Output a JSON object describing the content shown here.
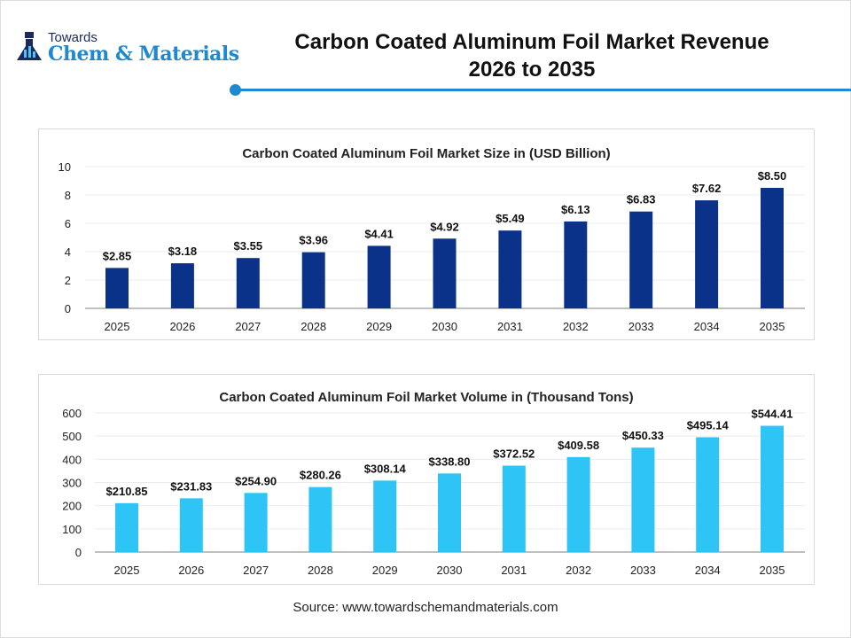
{
  "logo": {
    "line1": "Towards",
    "line2": "Chem & Materials"
  },
  "header": {
    "title_line1": "Carbon Coated Aluminum Foil Market Revenue",
    "title_line2": "2026 to 2035"
  },
  "source": "Source: www.towardschemandmaterials.com",
  "chart_data": [
    {
      "type": "bar",
      "title": "Carbon Coated Aluminum Foil Market Size in (USD Billion)",
      "categories": [
        "2025",
        "2026",
        "2027",
        "2028",
        "2029",
        "2030",
        "2031",
        "2032",
        "2033",
        "2034",
        "2035"
      ],
      "values": [
        2.85,
        3.18,
        3.55,
        3.96,
        4.41,
        4.92,
        5.49,
        6.13,
        6.83,
        7.62,
        8.5
      ],
      "labels": [
        "$2.85",
        "$3.18",
        "$3.55",
        "$3.96",
        "$4.41",
        "$4.92",
        "$5.49",
        "$6.13",
        "$6.83",
        "$7.62",
        "$8.50"
      ],
      "ylim": [
        0,
        10
      ],
      "yticks": [
        "0",
        "2",
        "4",
        "6",
        "8",
        "10"
      ],
      "grid": true,
      "color": "#0b3289"
    },
    {
      "type": "bar",
      "title": "Carbon Coated Aluminum Foil Market Volume in (Thousand Tons)",
      "categories": [
        "2025",
        "2026",
        "2027",
        "2028",
        "2029",
        "2030",
        "2031",
        "2032",
        "2033",
        "2034",
        "2035"
      ],
      "values": [
        210.85,
        231.83,
        254.9,
        280.26,
        308.14,
        338.8,
        372.52,
        409.58,
        450.33,
        495.14,
        544.41
      ],
      "labels": [
        "$210.85",
        "$231.83",
        "$254.90",
        "$280.26",
        "$308.14",
        "$338.80",
        "$372.52",
        "$409.58",
        "$450.33",
        "$495.14",
        "$544.41"
      ],
      "ylim": [
        0,
        600
      ],
      "yticks": [
        "0",
        "100",
        "200",
        "300",
        "400",
        "500",
        "600"
      ],
      "grid": true,
      "color": "#2ec4f5"
    }
  ]
}
